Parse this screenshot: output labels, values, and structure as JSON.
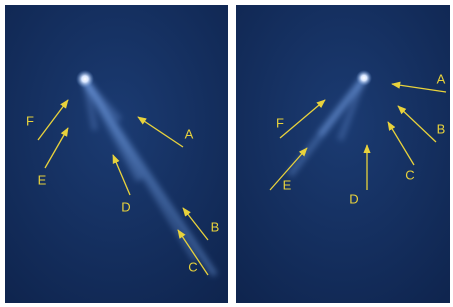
{
  "left_panel": {
    "labels": [
      "F",
      "E",
      "A",
      "D",
      "B",
      "C"
    ]
  },
  "right_panel": {
    "labels": [
      "A",
      "B",
      "C",
      "D",
      "E",
      "F"
    ]
  }
}
